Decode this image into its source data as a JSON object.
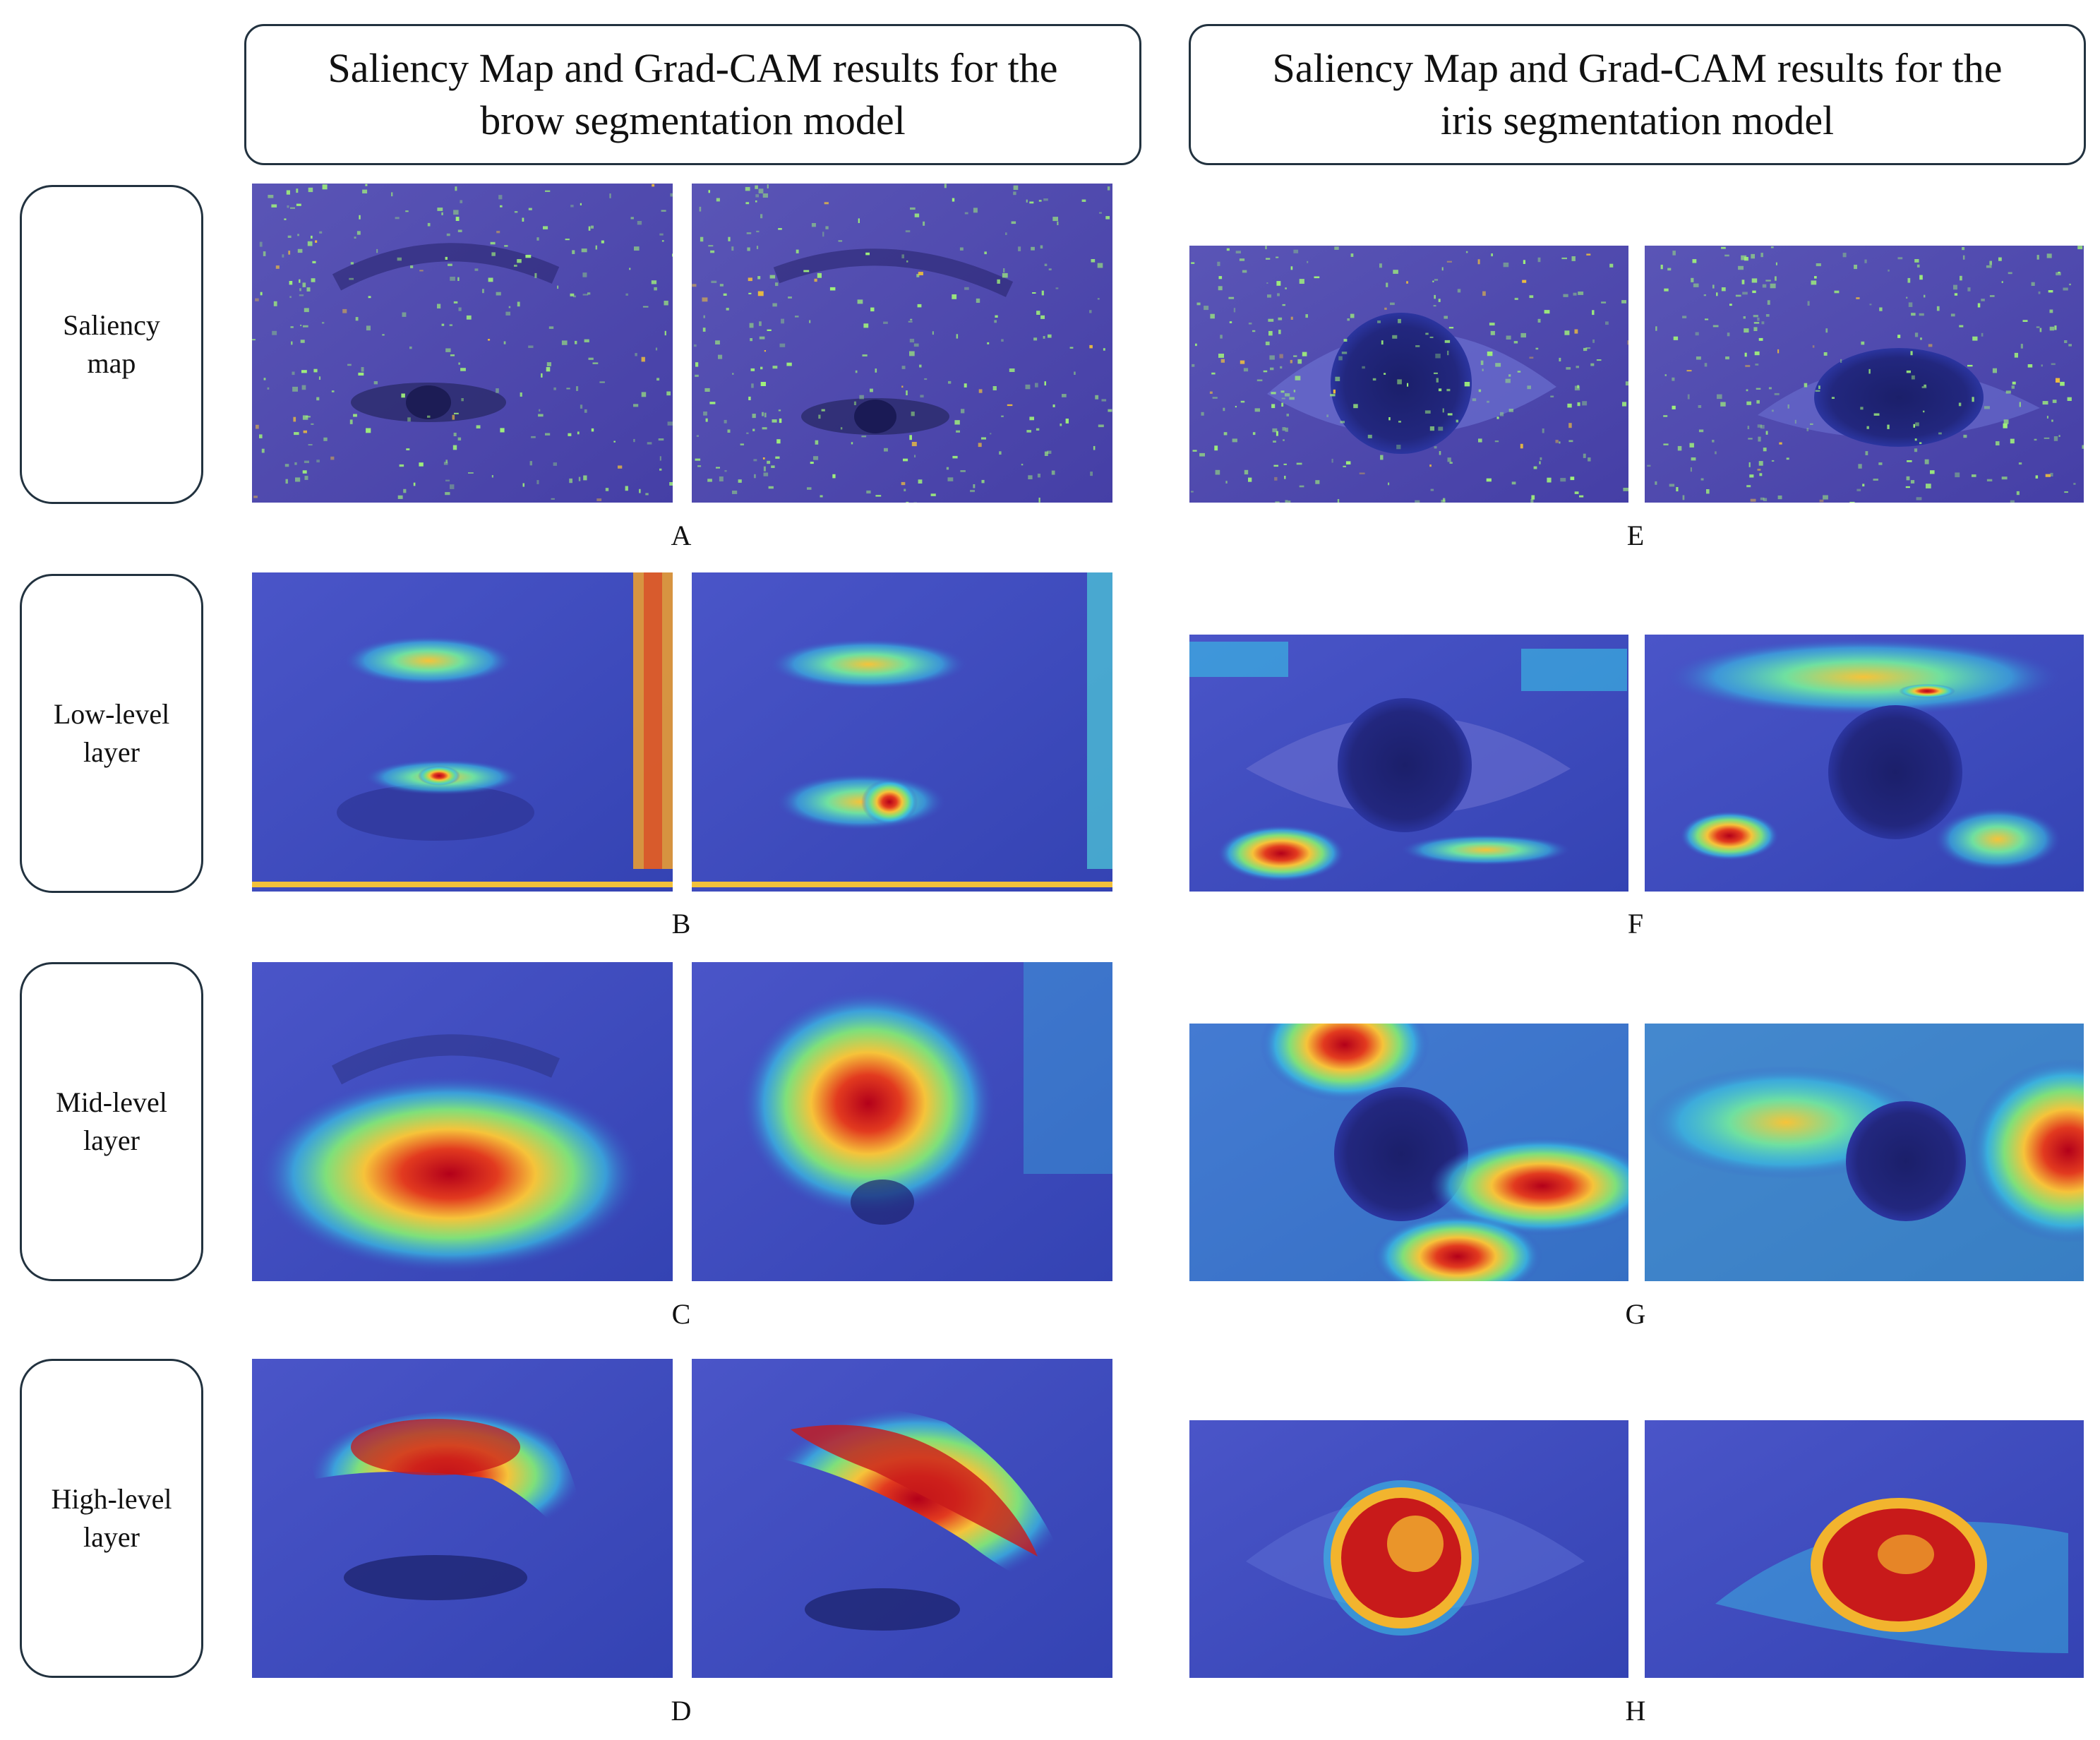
{
  "headers": {
    "left": [
      "Saliency Map and Grad-CAM results for the",
      "brow segmentation model"
    ],
    "right": [
      "Saliency Map and Grad-CAM results for the",
      "iris segmentation model"
    ]
  },
  "rows": [
    {
      "label": [
        "Saliency",
        "map"
      ],
      "left_letter": "A",
      "right_letter": "E"
    },
    {
      "label": [
        "Low-level",
        "layer"
      ],
      "left_letter": "B",
      "right_letter": "F"
    },
    {
      "label": [
        "Mid-level",
        "layer"
      ],
      "left_letter": "C",
      "right_letter": "G"
    },
    {
      "label": [
        "High-level",
        "layer"
      ],
      "left_letter": "D",
      "right_letter": "H"
    }
  ],
  "colors": {
    "background_blue": "#3a4fc4",
    "heat_hot": "#d81f1f",
    "heat_warm": "#f2d33b",
    "heat_cool": "#38c8d8",
    "border": "#22323f"
  }
}
